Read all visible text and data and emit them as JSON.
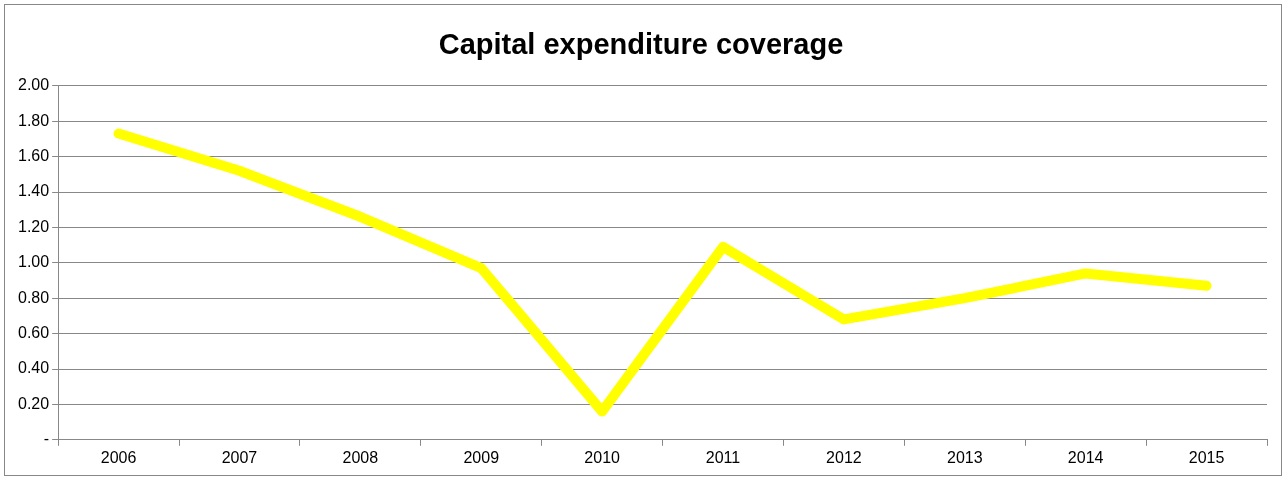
{
  "chart_data": {
    "type": "line",
    "title": "Capital expenditure coverage",
    "categories": [
      "2006",
      "2007",
      "2008",
      "2009",
      "2010",
      "2011",
      "2012",
      "2013",
      "2014",
      "2015"
    ],
    "series": [
      {
        "color": "#ffff00",
        "values": [
          1.73,
          1.52,
          1.26,
          0.97,
          0.16,
          1.09,
          0.68,
          0.8,
          0.94,
          0.87
        ]
      }
    ],
    "ylim": [
      0,
      2
    ],
    "yticks": [
      {
        "value": 0,
        "label": "-"
      },
      {
        "value": 0.2,
        "label": "0.20"
      },
      {
        "value": 0.4,
        "label": "0.40"
      },
      {
        "value": 0.6,
        "label": "0.60"
      },
      {
        "value": 0.8,
        "label": "0.80"
      },
      {
        "value": 1,
        "label": "1.00"
      },
      {
        "value": 1.2,
        "label": "1.20"
      },
      {
        "value": 1.4,
        "label": "1.40"
      },
      {
        "value": 1.6,
        "label": "1.60"
      },
      {
        "value": 1.8,
        "label": "1.80"
      },
      {
        "value": 2,
        "label": "2.00"
      }
    ],
    "grid": "y",
    "legend": false,
    "marker": "none",
    "line_style": "solid"
  }
}
